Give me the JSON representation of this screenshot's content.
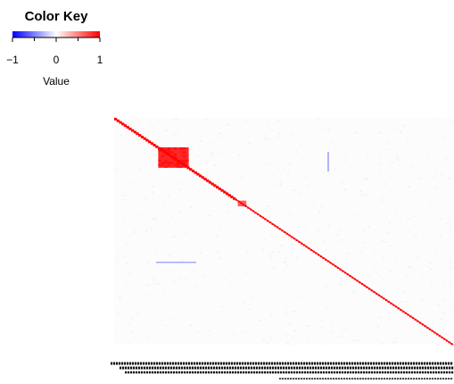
{
  "chart_data": {
    "type": "heatmap",
    "color_key": {
      "title": "Color Key",
      "ticks": [
        "−1",
        "0",
        "1"
      ],
      "label": "Value",
      "low_color": "#0000ff",
      "mid_color": "#ffffff",
      "high_color": "#ff0000",
      "range": [
        -1,
        1
      ]
    },
    "matrix": {
      "diagonal_value": 1,
      "background_value": 0,
      "blocks": [
        {
          "start": 0.13,
          "end": 0.22,
          "value": 0.85
        },
        {
          "start": 0.365,
          "end": 0.39,
          "value": 0.6
        }
      ]
    },
    "column_labels_visible": true
  },
  "colors": {
    "positive": "#ff0000",
    "negative": "#0000ff",
    "neutral": "#ffffff"
  }
}
